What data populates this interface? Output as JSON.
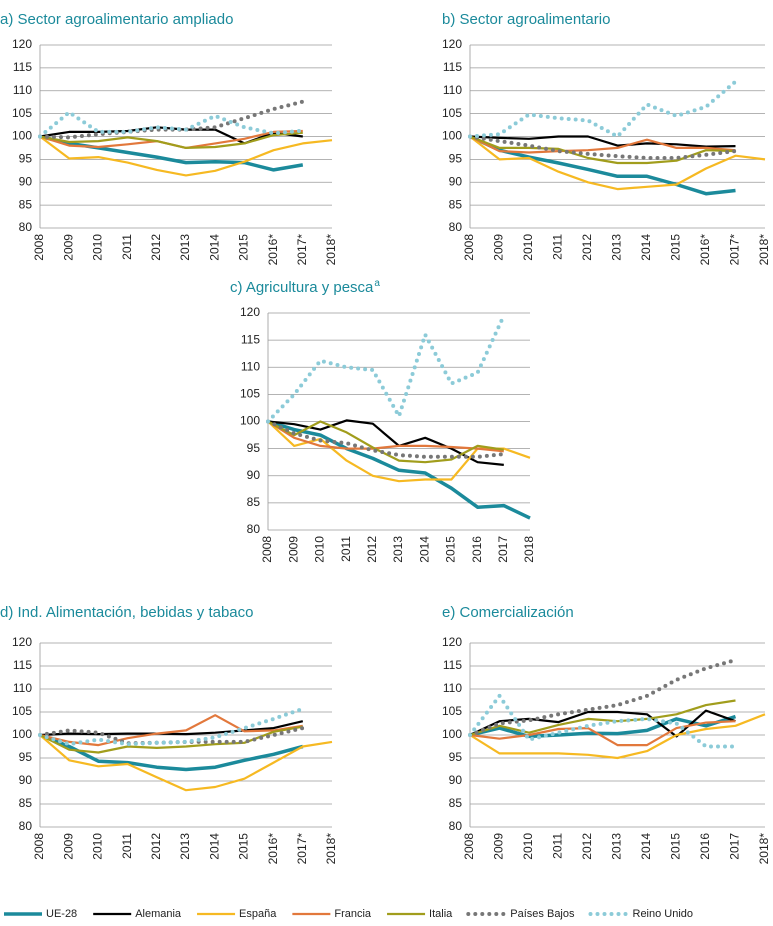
{
  "chart_data": [
    {
      "type": "line",
      "title": "a) Sector agroalimentario ampliado",
      "categories": [
        "2008",
        "2009",
        "2010",
        "2011",
        "2012",
        "2013",
        "2014",
        "2015",
        "2016*",
        "2017*",
        "2018*"
      ],
      "ylim": [
        80,
        120
      ],
      "yticks": [
        80,
        85,
        90,
        95,
        100,
        105,
        110,
        115,
        120
      ],
      "grid": true,
      "series": [
        {
          "values": [
            100,
            98.5,
            97.5,
            96.5,
            95.5,
            94.3,
            94.5,
            94.3,
            92.7,
            93.8,
            null
          ]
        },
        {
          "values": [
            100,
            101,
            101,
            101.2,
            102,
            101.5,
            101.5,
            98.5,
            100.8,
            100,
            null
          ]
        },
        {
          "values": [
            100,
            95.2,
            95.5,
            94.3,
            92.7,
            91.5,
            92.5,
            94.5,
            97,
            98.5,
            99.2
          ]
        },
        {
          "values": [
            100,
            98,
            97.7,
            98.3,
            99,
            97.5,
            98.5,
            99.5,
            101,
            101.2,
            null
          ]
        },
        {
          "values": [
            100,
            98.8,
            99,
            99.8,
            99,
            97.5,
            97.7,
            98.5,
            100.3,
            100.8,
            null
          ]
        },
        {
          "values": [
            100,
            99.8,
            100.5,
            101,
            101.5,
            101.5,
            102,
            104,
            106,
            107.6,
            null
          ]
        },
        {
          "values": [
            100,
            105.3,
            101,
            101,
            102,
            101.5,
            104.5,
            102,
            100.7,
            101.3,
            null
          ]
        }
      ]
    },
    {
      "type": "line",
      "title": "b) Sector agroalimentario",
      "categories": [
        "2008",
        "2009",
        "2010",
        "2011",
        "2012",
        "2013",
        "2014",
        "2015",
        "2016*",
        "2017*",
        "2018*"
      ],
      "ylim": [
        80,
        120
      ],
      "yticks": [
        80,
        85,
        90,
        95,
        100,
        105,
        110,
        115,
        120
      ],
      "grid": true,
      "series": [
        {
          "values": [
            100,
            97,
            95.5,
            94.2,
            92.8,
            91.3,
            91.3,
            89.5,
            87.5,
            88.2,
            null
          ]
        },
        {
          "values": [
            100,
            99.7,
            99.5,
            100,
            100,
            98,
            98.5,
            98.3,
            97.8,
            97.9,
            null
          ]
        },
        {
          "values": [
            100,
            95,
            95.3,
            92.3,
            90,
            88.5,
            89,
            89.5,
            93,
            95.8,
            95
          ]
        },
        {
          "values": [
            100,
            96.8,
            96.5,
            96.8,
            97,
            97.5,
            99.3,
            97.5,
            97.5,
            97,
            null
          ]
        },
        {
          "values": [
            100,
            97.5,
            97.5,
            97.3,
            95.3,
            94.2,
            94.2,
            94.7,
            97,
            96.8,
            null
          ]
        },
        {
          "values": [
            100,
            99,
            98,
            96.8,
            96.2,
            95.7,
            95.3,
            95.3,
            96,
            96.8,
            null
          ]
        },
        {
          "values": [
            100,
            100.5,
            104.8,
            104,
            103.5,
            100,
            107,
            104.5,
            106.5,
            112,
            null
          ]
        }
      ]
    },
    {
      "type": "line",
      "title": "c) Agricultura y pesca",
      "title_sup": "a",
      "categories": [
        "2008",
        "2009",
        "2010",
        "2011",
        "2012",
        "2013",
        "2014",
        "2015",
        "2016",
        "2017",
        "2018"
      ],
      "ylim": [
        80,
        120
      ],
      "yticks": [
        80,
        85,
        90,
        95,
        100,
        105,
        110,
        115,
        120
      ],
      "grid": true,
      "series": [
        {
          "values": [
            100,
            98.5,
            97.5,
            95,
            93.2,
            91,
            90.5,
            87.7,
            84.2,
            84.5,
            82.2
          ]
        },
        {
          "values": [
            100,
            99.5,
            98.5,
            100.2,
            99.6,
            95.5,
            97,
            95,
            92.5,
            92,
            null
          ]
        },
        {
          "values": [
            100,
            95.5,
            96.8,
            92.8,
            90,
            89,
            89.3,
            89.3,
            95,
            95,
            93.3
          ]
        },
        {
          "values": [
            100,
            97,
            95.5,
            95,
            95,
            95.5,
            95.5,
            95.3,
            95,
            94.5,
            null
          ]
        },
        {
          "values": [
            100,
            97.5,
            100,
            98,
            95.2,
            92.8,
            92.5,
            93,
            95.5,
            94.8,
            null
          ]
        },
        {
          "values": [
            100,
            97.8,
            96.5,
            96,
            94.7,
            93.8,
            93.5,
            93.5,
            93.5,
            94,
            null
          ]
        },
        {
          "values": [
            100,
            105,
            111.2,
            110,
            109.5,
            101,
            116,
            107,
            109,
            119.5,
            null
          ]
        }
      ]
    },
    {
      "type": "line",
      "title": "d) Ind. Alimentación, bebidas y tabaco",
      "categories": [
        "2008",
        "2009",
        "2010",
        "2011",
        "2012",
        "2013",
        "2014",
        "2015",
        "2016*",
        "2017*",
        "2018*"
      ],
      "ylim": [
        80,
        120
      ],
      "yticks": [
        80,
        85,
        90,
        95,
        100,
        105,
        110,
        115,
        120
      ],
      "grid": true,
      "series": [
        {
          "values": [
            100,
            97.5,
            94.3,
            94,
            93,
            92.5,
            93,
            94.5,
            95.8,
            97.5,
            null
          ]
        },
        {
          "values": [
            100,
            100.3,
            100.2,
            100.3,
            100.3,
            100.2,
            100.5,
            101,
            101.5,
            103,
            null
          ]
        },
        {
          "values": [
            100,
            94.5,
            93.2,
            93.7,
            90.8,
            88,
            88.7,
            90.5,
            94,
            97.5,
            98.5
          ]
        },
        {
          "values": [
            100,
            98.5,
            97.8,
            99.3,
            100.3,
            101,
            104.3,
            100.8,
            101,
            102,
            null
          ]
        },
        {
          "values": [
            100,
            96.8,
            96.2,
            97.5,
            97.2,
            97.5,
            98,
            98.3,
            100.7,
            101.8,
            null
          ]
        },
        {
          "values": [
            100,
            101,
            100.5,
            98.2,
            98.3,
            98.5,
            98.5,
            98.5,
            100,
            101.5,
            null
          ]
        },
        {
          "values": [
            100,
            98,
            99,
            98,
            98.3,
            98.5,
            99.5,
            101.5,
            103.5,
            105.7,
            null
          ]
        }
      ]
    },
    {
      "type": "line",
      "title": "e) Comercialización",
      "categories": [
        "2008",
        "2009",
        "2010",
        "2011",
        "2012",
        "2013",
        "2014",
        "2015",
        "2016",
        "2017",
        "2018*"
      ],
      "ylim": [
        80,
        120
      ],
      "yticks": [
        80,
        85,
        90,
        95,
        100,
        105,
        110,
        115,
        120
      ],
      "grid": true,
      "series": [
        {
          "values": [
            100,
            101.5,
            99.7,
            100,
            100.4,
            100.3,
            101,
            103.5,
            102,
            104,
            null
          ]
        },
        {
          "values": [
            100,
            103,
            103.5,
            102.8,
            105,
            105,
            104.5,
            99.7,
            105.3,
            103,
            null
          ]
        },
        {
          "values": [
            100,
            96,
            96,
            96,
            95.7,
            95,
            96.5,
            100,
            101.3,
            102,
            104.5
          ]
        },
        {
          "values": [
            100,
            99.2,
            100,
            101.3,
            101.5,
            97.8,
            97.8,
            101.5,
            102.7,
            103,
            null
          ]
        },
        {
          "values": [
            100,
            102,
            100.5,
            102.2,
            103.5,
            103,
            103.5,
            104.5,
            106.5,
            107.5,
            null
          ]
        },
        {
          "values": [
            100,
            102.5,
            103.2,
            104.5,
            105.5,
            106.5,
            108.5,
            112,
            114.5,
            116.3,
            null
          ]
        },
        {
          "values": [
            100,
            108.5,
            99,
            100.5,
            102,
            103,
            103.5,
            102.5,
            97.5,
            97.5,
            null
          ]
        }
      ]
    }
  ],
  "legend": [
    {
      "name": "UE-28",
      "color": "#1b8a9b",
      "style": "solid"
    },
    {
      "name": "Alemania",
      "color": "#000000",
      "style": "solid"
    },
    {
      "name": "España",
      "color": "#f6b922",
      "style": "solid"
    },
    {
      "name": "Francia",
      "color": "#e2783c",
      "style": "solid"
    },
    {
      "name": "Italia",
      "color": "#a19d1c",
      "style": "solid"
    },
    {
      "name": "Países Bajos",
      "color": "#777777",
      "style": "dotted"
    },
    {
      "name": "Reino Unido",
      "color": "#8ccbd8",
      "style": "dotted"
    }
  ]
}
